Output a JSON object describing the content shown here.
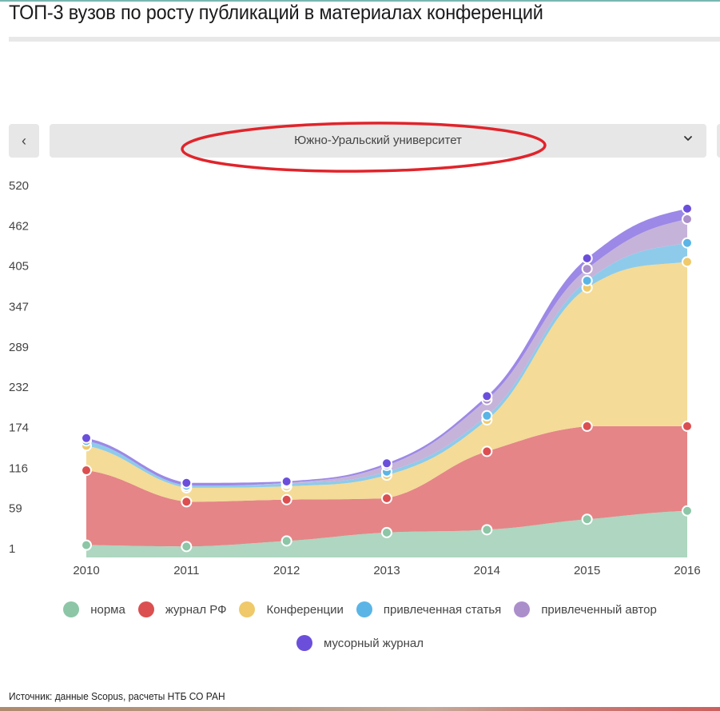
{
  "header": {
    "title": "ТОП-3 вузов по росту публикаций в материалах конференций"
  },
  "selector": {
    "prev_icon": "chevron-left-icon",
    "prev_glyph": "‹",
    "selected": "Южно-Уральский университет",
    "dropdown_icon": "chevron-down-icon"
  },
  "colors": {
    "annotation_ellipse": "#e0242b"
  },
  "chart_data": {
    "type": "area",
    "stacked": true,
    "smooth": true,
    "title": "",
    "xlabel": "",
    "ylabel": "",
    "x": [
      "2010",
      "2011",
      "2012",
      "2013",
      "2014",
      "2015",
      "2016"
    ],
    "y_ticks": [
      "520",
      "462",
      "405",
      "347",
      "289",
      "232",
      "174",
      "116",
      "59",
      "1"
    ],
    "ylim": [
      1,
      520
    ],
    "grid": false,
    "legend_position": "bottom",
    "series": [
      {
        "name": "норма",
        "color": "#8cc6a6",
        "fill": "#aed6c0",
        "values": [
          6,
          4,
          12,
          24,
          28,
          43,
          55
        ]
      },
      {
        "name": "журнал РФ",
        "color": "#db4f51",
        "fill": "#e58587",
        "values": [
          107,
          64,
          59,
          49,
          112,
          133,
          121
        ]
      },
      {
        "name": "Конференции",
        "color": "#efc96a",
        "fill": "#f4db97",
        "values": [
          35,
          20,
          19,
          33,
          45,
          198,
          235
        ]
      },
      {
        "name": "привлеченная статья",
        "color": "#5ab5e6",
        "fill": "#8ecbea",
        "values": [
          7,
          3,
          4,
          5,
          6,
          10,
          27
        ]
      },
      {
        "name": "привлеченный автор",
        "color": "#ab8fcb",
        "fill": "#c6b3da",
        "values": [
          0,
          0,
          1,
          9,
          23,
          17,
          34
        ]
      },
      {
        "name": "мусорный журнал",
        "color": "#6b4fdb",
        "fill": "#9c88e6",
        "values": [
          4,
          4,
          2,
          3,
          5,
          15,
          15
        ]
      }
    ]
  },
  "legend": {
    "row1": [
      0,
      1,
      2,
      3,
      4
    ],
    "row2": [
      5
    ]
  },
  "footer": {
    "source": "Источник: данные Scopus, расчеты НТБ СО РАН"
  }
}
